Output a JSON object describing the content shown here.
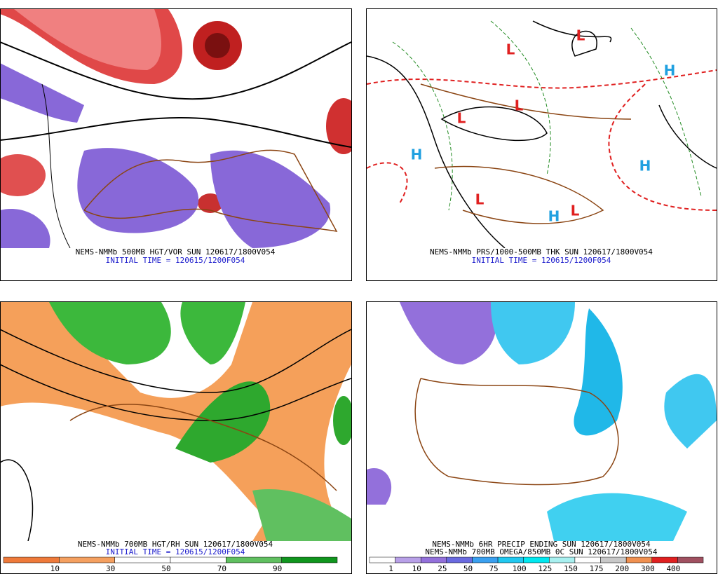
{
  "top_left": {
    "caption": "NEMS-NMMb 500MB HGT/VOR SUN 120617/1800V054",
    "initial_time": "INITIAL TIME = 120615/1200F054"
  },
  "top_right": {
    "caption": "NEMS-NMMb PRS/1000-500MB THK SUN 120617/1800V054",
    "initial_time": "INITIAL TIME = 120615/1200F054",
    "low": "L",
    "high": "H"
  },
  "bottom_left": {
    "caption": "NEMS-NMMb 700MB HGT/RH SUN 120617/1800V054",
    "initial_time": "INITIAL TIME = 120615/1200F054",
    "colorbar": {
      "labels": [
        "10",
        "30",
        "50",
        "70",
        "90"
      ],
      "colors": [
        "#ef7a3a",
        "#f5a060",
        "#ffffff",
        "#ffffff",
        "#60c060",
        "#10961e"
      ]
    }
  },
  "bottom_right": {
    "caption": "NEMS-NMMb 6HR PRECIP ENDING SUN 120617/1800V054",
    "caption2": "NEMS-NMMb 700MB OMEGA/850MB 0C SUN 120617/1800V054",
    "colorbar": {
      "labels": [
        "1",
        "10",
        "25",
        "50",
        "75",
        "100",
        "125",
        "150",
        "175",
        "200",
        "300",
        "400"
      ],
      "colors": [
        "#ffffff",
        "#b8a0e8",
        "#9370db",
        "#6a6ae0",
        "#3aa0f0",
        "#20c8f0",
        "#00e8f0",
        "#a8f0f0",
        "#ffffff",
        "#c8c8c8",
        "#f09050",
        "#e02020",
        "#a05060"
      ]
    }
  }
}
